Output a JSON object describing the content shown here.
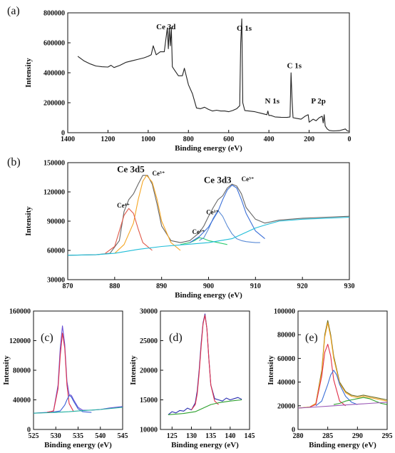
{
  "chart_data": [
    {
      "id": "a",
      "type": "line",
      "panel_label": "(a)",
      "xlabel": "Binding energy (eV)",
      "ylabel": "Intensity",
      "xlim": [
        1400,
        0
      ],
      "ylim": [
        0,
        800000
      ],
      "x_reversed": true,
      "xticks": [
        1400,
        1200,
        1000,
        800,
        600,
        400,
        200,
        0
      ],
      "yticks": [
        0,
        200000,
        400000,
        600000,
        800000
      ],
      "annotations": [
        {
          "text": "Ce 3d",
          "x": 960,
          "y": 690000
        },
        {
          "text": "O 1s",
          "x": 560,
          "y": 680000
        },
        {
          "text": "C 1s",
          "x": 310,
          "y": 430000
        },
        {
          "text": "N 1s",
          "x": 420,
          "y": 195000
        },
        {
          "text": "P 2p",
          "x": 190,
          "y": 195000
        }
      ],
      "series": [
        {
          "color": "#222222",
          "x": [
            1350,
            1320,
            1290,
            1260,
            1230,
            1200,
            1185,
            1170,
            1140,
            1110,
            1080,
            1050,
            1020,
            1000,
            985,
            975,
            960,
            940,
            920,
            905,
            900,
            895,
            890,
            885,
            880,
            870,
            850,
            830,
            820,
            800,
            780,
            760,
            740,
            720,
            700,
            680,
            660,
            640,
            620,
            600,
            580,
            560,
            545,
            540,
            535,
            530,
            520,
            500,
            470,
            440,
            410,
            405,
            400,
            390,
            370,
            340,
            310,
            295,
            290,
            285,
            280,
            260,
            240,
            220,
            205,
            200,
            180,
            165,
            150,
            135,
            130,
            125,
            120,
            110,
            100,
            80,
            50,
            20,
            10,
            0
          ],
          "y": [
            510000,
            480000,
            460000,
            445000,
            440000,
            438000,
            450000,
            435000,
            450000,
            470000,
            480000,
            490000,
            500000,
            510000,
            520000,
            580000,
            520000,
            540000,
            540000,
            700000,
            560000,
            700000,
            580000,
            700000,
            440000,
            420000,
            380000,
            380000,
            430000,
            320000,
            260000,
            165000,
            160000,
            170000,
            155000,
            145000,
            150000,
            145000,
            145000,
            140000,
            148000,
            160000,
            180000,
            600000,
            760000,
            200000,
            148000,
            145000,
            140000,
            130000,
            120000,
            145000,
            115000,
            115000,
            105000,
            103000,
            102000,
            105000,
            400000,
            220000,
            100000,
            95000,
            90000,
            110000,
            120000,
            70000,
            90000,
            80000,
            100000,
            110000,
            65000,
            120000,
            45000,
            25000,
            15000,
            12000,
            14000,
            25000,
            12000,
            10000
          ]
        }
      ]
    },
    {
      "id": "b",
      "type": "line",
      "panel_label": "(b)",
      "xlabel": "Binding energy (eV)",
      "ylabel": "Intensity",
      "xlim": [
        870,
        930
      ],
      "ylim": [
        30000,
        150000
      ],
      "xticks": [
        870,
        880,
        890,
        900,
        910,
        920,
        930
      ],
      "yticks": [
        30000,
        60000,
        90000,
        120000,
        150000
      ],
      "annotations": [
        {
          "text": "Ce 3d5",
          "x": 880.5,
          "y": 140000,
          "cls": "annot-big"
        },
        {
          "text": "Ce 3d3",
          "x": 899,
          "y": 129000,
          "cls": "annot-big"
        },
        {
          "text": "Ce³⁺",
          "x": 888,
          "y": 137000,
          "cls": "annot-small"
        },
        {
          "text": "Ce⁴⁺",
          "x": 880.5,
          "y": 104000,
          "cls": "annot-small"
        },
        {
          "text": "Ce³⁺",
          "x": 899.5,
          "y": 97000,
          "cls": "annot-small"
        },
        {
          "text": "Ce³⁺",
          "x": 896.5,
          "y": 77000,
          "cls": "annot-small"
        },
        {
          "text": "Ce³⁺",
          "x": 907,
          "y": 131000,
          "cls": "annot-small"
        }
      ],
      "series": [
        {
          "color": "#666666",
          "x": [
            870,
            876,
            879,
            881,
            882,
            883,
            884,
            885,
            886,
            887,
            888,
            889,
            890,
            892,
            894,
            896,
            898,
            899,
            900,
            901,
            902,
            903,
            904,
            905,
            906,
            907,
            908,
            910,
            912,
            915,
            920,
            925,
            930
          ],
          "y": [
            55000,
            55500,
            57000,
            70000,
            100000,
            112000,
            118000,
            128000,
            137000,
            137000,
            128000,
            108000,
            85000,
            70000,
            68000,
            70000,
            78000,
            85000,
            95000,
            104000,
            112000,
            116000,
            124000,
            128000,
            126000,
            118000,
            104000,
            92000,
            88000,
            91000,
            93000,
            94000,
            95000
          ]
        },
        {
          "color": "#f5a623",
          "x": [
            880,
            882,
            884,
            885,
            886,
            886.8,
            888,
            889,
            890,
            892,
            894
          ],
          "y": [
            57000,
            66000,
            88000,
            112000,
            131000,
            137000,
            130000,
            113000,
            90000,
            68000,
            60000
          ]
        },
        {
          "color": "#e05a4a",
          "x": [
            878,
            880,
            881,
            882,
            883,
            884,
            885,
            886,
            888
          ],
          "y": [
            57000,
            64000,
            80000,
            96000,
            103000,
            98000,
            82000,
            68000,
            60000
          ]
        },
        {
          "color": "#2ecc71",
          "x": [
            894,
            896,
            897,
            898,
            899,
            900,
            901,
            902,
            903,
            904
          ],
          "y": [
            66000,
            68000,
            70000,
            73000,
            72000,
            70000,
            69000,
            68000,
            67000,
            66000
          ]
        },
        {
          "color": "#5a8bd6",
          "x": [
            898,
            899,
            900,
            901,
            902,
            903,
            904,
            905,
            906,
            907,
            908,
            909,
            910,
            911
          ],
          "y": [
            70000,
            73000,
            82000,
            93000,
            101000,
            95000,
            85000,
            77000,
            72000,
            70000,
            69000,
            68500,
            68000,
            68000
          ]
        },
        {
          "color": "#3a6fd8",
          "x": [
            896,
            898,
            900,
            902,
            903,
            904,
            905,
            906,
            907,
            908,
            910,
            912
          ],
          "y": [
            68000,
            74000,
            84000,
            100000,
            112000,
            122000,
            127000,
            124000,
            112000,
            98000,
            80000,
            72000
          ]
        },
        {
          "color": "#1fbdd8",
          "x": [
            870,
            876,
            880,
            885,
            890,
            895,
            900,
            905,
            910,
            912,
            915,
            920,
            925,
            930
          ],
          "y": [
            55000,
            55500,
            57000,
            61000,
            64000,
            66000,
            68000,
            72000,
            83000,
            86000,
            90000,
            92000,
            93000,
            94000
          ]
        }
      ]
    },
    {
      "id": "c",
      "type": "line",
      "panel_label": "(c)",
      "xlabel": "Binding energy (eV)",
      "ylabel": "Intensity",
      "xlim": [
        525,
        545
      ],
      "ylim": [
        0,
        160000
      ],
      "xticks": [
        525,
        530,
        535,
        540,
        545
      ],
      "yticks": [
        0,
        40000,
        80000,
        120000,
        160000
      ],
      "series": [
        {
          "color": "#6a4fd3",
          "x": [
            525,
            528,
            529.5,
            530.5,
            531,
            531.5,
            532,
            532.5,
            533,
            533.5,
            534,
            535,
            536,
            538,
            540,
            542,
            545
          ],
          "y": [
            22000,
            23000,
            25000,
            60000,
            110000,
            140000,
            115000,
            65000,
            47000,
            46000,
            40000,
            30000,
            26000,
            26000,
            27000,
            29000,
            31000
          ]
        },
        {
          "color": "#e0304a",
          "x": [
            528,
            529.5,
            530.5,
            531,
            531.5,
            532,
            532.5,
            533,
            534
          ],
          "y": [
            23000,
            25000,
            55000,
            100000,
            130000,
            110000,
            60000,
            35000,
            24000
          ]
        },
        {
          "color": "#3b5fd6",
          "x": [
            529,
            531,
            532,
            532.5,
            533,
            533.5,
            534,
            535,
            536,
            538
          ],
          "y": [
            23000,
            25000,
            33000,
            40000,
            46000,
            44000,
            38000,
            28000,
            24000,
            23000
          ]
        },
        {
          "color": "#20b0a0",
          "x": [
            525,
            530,
            533,
            535,
            540,
            545
          ],
          "y": [
            22000,
            23000,
            24000,
            25000,
            27000,
            30000
          ]
        }
      ]
    },
    {
      "id": "d",
      "type": "line",
      "panel_label": "(d)",
      "xlabel": "Binding energy (eV)",
      "ylabel": "Intensity",
      "xlim": [
        122,
        145
      ],
      "ylim": [
        10000,
        30000
      ],
      "xticks": [
        125,
        130,
        135,
        140,
        145
      ],
      "yticks": [
        10000,
        15000,
        20000,
        25000,
        30000
      ],
      "series": [
        {
          "color": "#2a2fb0",
          "x": [
            124,
            125,
            126,
            127,
            128,
            129,
            130,
            131,
            131.5,
            132,
            132.5,
            133,
            133.5,
            134,
            134.5,
            135,
            136,
            137,
            138,
            139,
            140,
            141,
            142,
            143
          ],
          "y": [
            12500,
            13000,
            12800,
            13200,
            13100,
            13600,
            13300,
            14500,
            16500,
            20000,
            24500,
            28000,
            29500,
            27000,
            22000,
            17500,
            15200,
            15000,
            14800,
            15300,
            15000,
            15200,
            15400,
            15100
          ]
        },
        {
          "color": "#e0304a",
          "x": [
            130,
            131,
            131.5,
            132,
            132.5,
            133,
            133.5,
            134,
            134.5,
            135,
            136,
            137
          ],
          "y": [
            13300,
            14200,
            16000,
            19500,
            24000,
            27800,
            29300,
            27000,
            22000,
            17500,
            14800,
            14200
          ]
        },
        {
          "color": "#2ca02c",
          "x": [
            124,
            128,
            131,
            133,
            135,
            137,
            140,
            143
          ],
          "y": [
            12500,
            12700,
            13000,
            13600,
            14200,
            14500,
            14800,
            15000
          ]
        }
      ]
    },
    {
      "id": "e",
      "type": "line",
      "panel_label": "(e)",
      "xlabel": "Binding energy (eV)",
      "ylabel": "Intensity",
      "xlim": [
        280,
        295
      ],
      "ylim": [
        0,
        100000
      ],
      "xticks": [
        280,
        285,
        290,
        295
      ],
      "yticks": [
        0,
        20000,
        40000,
        60000,
        80000,
        100000
      ],
      "series": [
        {
          "color": "#6b6b1f",
          "x": [
            280,
            282,
            283,
            284,
            284.5,
            285,
            285.5,
            286,
            287,
            288,
            289,
            290,
            291,
            292,
            293,
            295
          ],
          "y": [
            18000,
            19000,
            22000,
            50000,
            80000,
            92000,
            80000,
            62000,
            40000,
            32000,
            29000,
            28000,
            29000,
            28000,
            27000,
            25000
          ]
        },
        {
          "color": "#f5a623",
          "x": [
            280,
            282,
            283,
            284,
            284.5,
            285,
            285.5,
            286,
            287,
            288,
            289,
            290,
            291,
            292,
            293,
            295
          ],
          "y": [
            18000,
            19000,
            22000,
            48000,
            78000,
            90000,
            78000,
            60000,
            39000,
            31000,
            28000,
            27000,
            28000,
            27000,
            26000,
            24000
          ]
        },
        {
          "color": "#e0304a",
          "x": [
            282,
            283,
            284,
            284.5,
            285,
            285.5,
            286,
            287,
            288
          ],
          "y": [
            19000,
            21000,
            45000,
            65000,
            72000,
            62000,
            42000,
            24000,
            20000
          ]
        },
        {
          "color": "#3a6fd8",
          "x": [
            283,
            284,
            285,
            285.5,
            286,
            286.5,
            287,
            288,
            289,
            290
          ],
          "y": [
            20000,
            24000,
            38000,
            46000,
            50000,
            46000,
            38000,
            28000,
            23000,
            21000
          ]
        },
        {
          "color": "#2ca02c",
          "x": [
            286,
            287,
            288,
            289,
            290,
            291,
            292,
            293,
            294,
            295
          ],
          "y": [
            21000,
            22000,
            24000,
            25000,
            26000,
            27000,
            26000,
            24000,
            22000,
            21000
          ]
        },
        {
          "color": "#9b59b6",
          "x": [
            280,
            283,
            286,
            289,
            292,
            295
          ],
          "y": [
            18000,
            19000,
            20000,
            21000,
            22000,
            23000
          ]
        }
      ]
    }
  ]
}
